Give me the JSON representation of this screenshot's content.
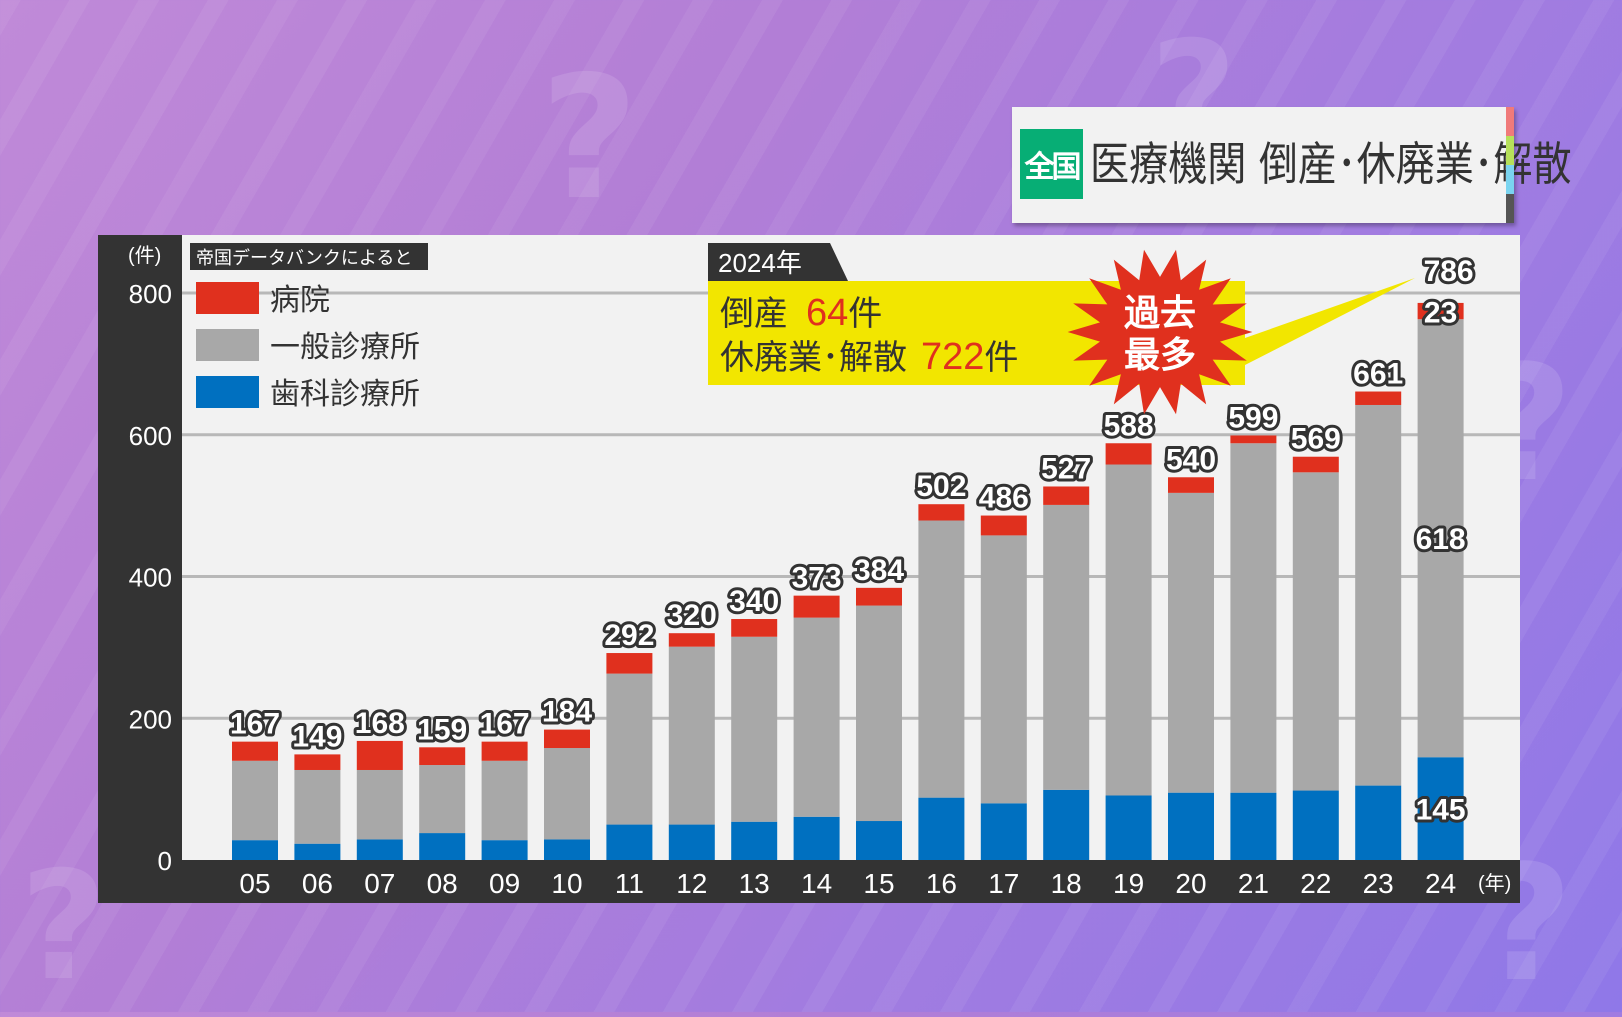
{
  "title": {
    "badge": "全国",
    "text": "医療機関 倒産･休廃業･解散"
  },
  "source_note": "帝国データバンクによると",
  "callout": {
    "year_tab": "2024年",
    "line1_label": "倒産",
    "line1_value": "64",
    "line1_unit": "件",
    "line2_label": "休廃業･解散",
    "line2_value": "722",
    "line2_unit": "件",
    "burst_line1": "過去",
    "burst_line2": "最多"
  },
  "colors": {
    "hospital": "#e0301e",
    "general": "#a8a8a8",
    "dental": "#0070c0",
    "panel": "#f2f2f2",
    "axis_bg": "#333333",
    "callout": "#f2e600"
  },
  "chart_data": {
    "type": "bar",
    "stacked": true,
    "title": "医療機関 倒産･休廃業･解散",
    "ylabel": "(件)",
    "xlabel": "(年)",
    "ylim": [
      0,
      800
    ],
    "yticks": [
      0,
      200,
      400,
      600,
      800
    ],
    "grid": true,
    "legend_position": "top-left",
    "categories": [
      "05",
      "06",
      "07",
      "08",
      "09",
      "10",
      "11",
      "12",
      "13",
      "14",
      "15",
      "16",
      "17",
      "18",
      "19",
      "20",
      "21",
      "22",
      "23",
      "24"
    ],
    "series": [
      {
        "name": "歯科診療所",
        "key": "dental",
        "values": [
          28,
          23,
          29,
          38,
          28,
          29,
          50,
          50,
          54,
          61,
          55,
          88,
          80,
          99,
          91,
          95,
          95,
          98,
          105,
          145
        ]
      },
      {
        "name": "一般診療所",
        "key": "general",
        "values": [
          112,
          104,
          98,
          96,
          112,
          129,
          213,
          251,
          261,
          281,
          304,
          391,
          378,
          402,
          467,
          423,
          493,
          449,
          537,
          618
        ]
      },
      {
        "name": "病院",
        "key": "hospital",
        "values": [
          27,
          22,
          41,
          25,
          27,
          26,
          29,
          19,
          25,
          31,
          25,
          23,
          28,
          26,
          30,
          22,
          11,
          22,
          19,
          23
        ]
      }
    ],
    "totals": [
      "167",
      "149",
      "168",
      "159",
      "167",
      "184",
      "292",
      "320",
      "340",
      "373",
      "384",
      "502",
      "486",
      "527",
      "588",
      "540",
      "599",
      "569",
      "661",
      "786"
    ],
    "legend": [
      "病院",
      "一般診療所",
      "歯科診療所"
    ],
    "annotations_2024": {
      "hospital": "23",
      "general": "618",
      "dental": "145"
    }
  }
}
